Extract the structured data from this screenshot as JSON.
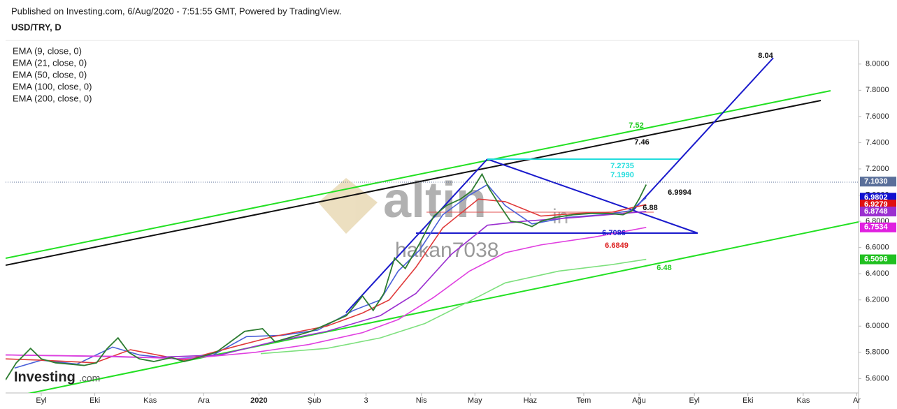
{
  "header": {
    "published": "Published on Investing.com, 6/Aug/2020 - 7:51:55 GMT, Powered by TradingView.",
    "symbol": "USD/TRY, D"
  },
  "watermark": {
    "logo": "altin",
    "logo_suffix": "in",
    "author": "hakan7038",
    "brand": "Investing",
    "brand_suffix": ".com"
  },
  "chart_data": {
    "type": "line",
    "xlim": [
      -20,
      458
    ],
    "ylim": [
      5.49,
      8.18
    ],
    "xticks": [
      {
        "value": 0,
        "label": "Eyl"
      },
      {
        "value": 30,
        "label": "Eki"
      },
      {
        "value": 61,
        "label": "Kas"
      },
      {
        "value": 91,
        "label": "Ara"
      },
      {
        "value": 122,
        "label": "2020"
      },
      {
        "value": 153,
        "label": "Şub"
      },
      {
        "value": 182,
        "label": "3"
      },
      {
        "value": 213,
        "label": "Nis"
      },
      {
        "value": 243,
        "label": "May"
      },
      {
        "value": 274,
        "label": "Haz"
      },
      {
        "value": 304,
        "label": "Tem"
      },
      {
        "value": 335,
        "label": "Ağu"
      },
      {
        "value": 366,
        "label": "Eyl"
      },
      {
        "value": 396,
        "label": "Eki"
      },
      {
        "value": 427,
        "label": "Kas"
      },
      {
        "value": 457,
        "label": "Ar"
      }
    ],
    "yticks": [
      {
        "value": 5.6,
        "label": "5.6000"
      },
      {
        "value": 5.8,
        "label": "5.8000"
      },
      {
        "value": 6.0,
        "label": "6.0000"
      },
      {
        "value": 6.2,
        "label": "6.2000"
      },
      {
        "value": 6.4,
        "label": "6.4000"
      },
      {
        "value": 6.6,
        "label": "6.6000"
      },
      {
        "value": 6.8,
        "label": "6.8000"
      },
      {
        "value": 7.0,
        "label": "7.0000"
      },
      {
        "value": 7.2,
        "label": "7.2000"
      },
      {
        "value": 7.4,
        "label": "7.4000"
      },
      {
        "value": 7.6,
        "label": "7.6000"
      },
      {
        "value": 7.8,
        "label": "7.8000"
      },
      {
        "value": 8.0,
        "label": "8.0000"
      }
    ],
    "price": {
      "color": "#2e7d32",
      "x": [
        -20,
        -14,
        -6,
        0,
        8,
        16,
        24,
        31,
        37,
        43,
        49,
        55,
        63,
        73,
        80,
        88,
        98,
        106,
        114,
        124,
        131,
        141,
        151,
        161,
        171,
        180,
        186,
        192,
        198,
        204,
        212,
        220,
        227,
        235,
        241,
        247,
        251,
        257,
        263,
        269,
        275,
        280,
        288,
        298,
        308,
        318,
        326,
        331,
        335,
        339
      ],
      "values": [
        5.59,
        5.72,
        5.83,
        5.75,
        5.72,
        5.71,
        5.7,
        5.72,
        5.83,
        5.91,
        5.8,
        5.75,
        5.73,
        5.76,
        5.73,
        5.76,
        5.8,
        5.88,
        5.96,
        5.98,
        5.88,
        5.92,
        5.96,
        6.02,
        6.08,
        6.23,
        6.12,
        6.25,
        6.52,
        6.44,
        6.63,
        6.84,
        6.92,
        6.97,
        7.03,
        7.16,
        7.05,
        6.92,
        6.8,
        6.79,
        6.76,
        6.8,
        6.83,
        6.85,
        6.86,
        6.86,
        6.85,
        6.88,
        6.97,
        7.08
      ]
    },
    "series": [
      {
        "name": "EMA (9, close, 0)",
        "color": "#4a5fd8",
        "x": [
          -15,
          0,
          20,
          40,
          55,
          75,
          95,
          115,
          135,
          155,
          175,
          190,
          200,
          212,
          225,
          240,
          250,
          260,
          275,
          295,
          315,
          330,
          339
        ],
        "values": [
          5.68,
          5.74,
          5.71,
          5.84,
          5.78,
          5.75,
          5.77,
          5.92,
          5.93,
          5.97,
          6.12,
          6.2,
          6.42,
          6.58,
          6.85,
          7.0,
          7.08,
          6.92,
          6.78,
          6.83,
          6.85,
          6.88,
          6.9802
        ]
      },
      {
        "name": "EMA (21, close, 0)",
        "color": "#e03a3a",
        "x": [
          -20,
          0,
          30,
          50,
          80,
          110,
          130,
          160,
          180,
          195,
          210,
          225,
          245,
          260,
          280,
          300,
          320,
          339
        ],
        "values": [
          5.75,
          5.74,
          5.72,
          5.82,
          5.74,
          5.85,
          5.92,
          6.0,
          6.1,
          6.2,
          6.45,
          6.75,
          6.97,
          6.95,
          6.84,
          6.86,
          6.87,
          6.9279
        ]
      },
      {
        "name": "EMA (50, close, 0)",
        "color": "#9b30d0",
        "x": [
          -20,
          30,
          60,
          100,
          130,
          160,
          190,
          210,
          230,
          250,
          270,
          300,
          339
        ],
        "values": [
          5.78,
          5.77,
          5.76,
          5.78,
          5.88,
          5.96,
          6.08,
          6.25,
          6.55,
          6.77,
          6.8,
          6.83,
          6.8748
        ]
      },
      {
        "name": "EMA (100, close, 0)",
        "color": "#e040e0",
        "x": [
          -20,
          40,
          80,
          120,
          150,
          180,
          200,
          220,
          240,
          260,
          280,
          310,
          339
        ],
        "values": [
          5.78,
          5.77,
          5.75,
          5.8,
          5.86,
          5.95,
          6.05,
          6.22,
          6.42,
          6.56,
          6.62,
          6.68,
          6.7534
        ]
      },
      {
        "name": "EMA (200, close, 0)",
        "color": "#7ee07e",
        "x": [
          123,
          160,
          190,
          215,
          240,
          260,
          290,
          320,
          339
        ],
        "values": [
          5.79,
          5.83,
          5.91,
          6.02,
          6.19,
          6.33,
          6.42,
          6.47,
          6.5096
        ]
      }
    ],
    "price_labels": [
      {
        "value": 7.103,
        "label": "7.1030",
        "color": "#5a6f9a"
      },
      {
        "value": 6.9802,
        "label": "6.9802",
        "color": "#1010d0"
      },
      {
        "value": 6.9279,
        "label": "6.9279",
        "color": "#e01010"
      },
      {
        "value": 6.8748,
        "label": "6.8748",
        "color": "#9b30d0"
      },
      {
        "value": 6.7534,
        "label": "6.7534",
        "color": "#e020e0"
      },
      {
        "value": 6.5096,
        "label": "6.5096",
        "color": "#20c020"
      }
    ],
    "annotations": [
      {
        "text": "8.04",
        "color": "#111111"
      },
      {
        "text": "7.52",
        "color": "#22cc22"
      },
      {
        "text": "7.46",
        "color": "#111111"
      },
      {
        "text": "7.2735",
        "color": "#22dddd"
      },
      {
        "text": "7.1990",
        "color": "#22dddd"
      },
      {
        "text": "6.9994",
        "color": "#111111"
      },
      {
        "text": "6.88",
        "color": "#111111"
      },
      {
        "text": "6.7086",
        "color": "#1a1acc"
      },
      {
        "text": "6.6849",
        "color": "#dd2222"
      },
      {
        "text": "6.48",
        "color": "#22cc22"
      }
    ]
  }
}
